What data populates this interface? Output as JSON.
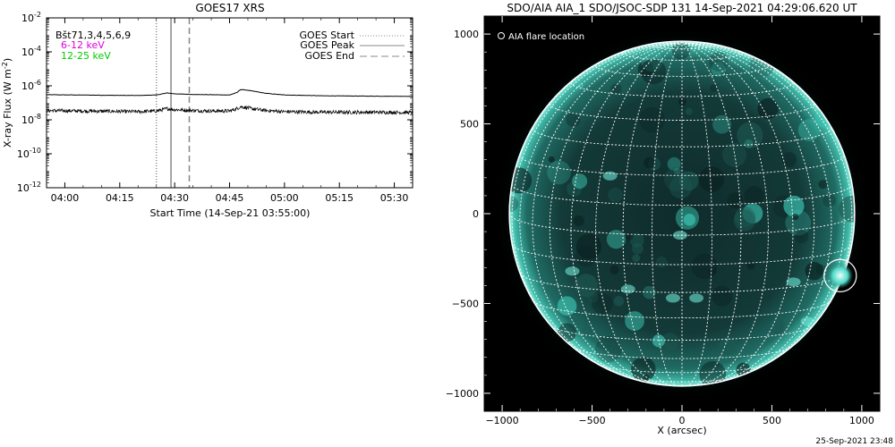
{
  "goes": {
    "title": "GOES17 XRS",
    "ylabel_main": "X-ray Flux (W m",
    "ylabel_exp": "-2",
    "ylabel_close": ")",
    "xlabel": "Start Time (14-Sep-21 03:55:00)",
    "channels": [
      {
        "label": "Bšt71,3,4,5,6,9",
        "color": "#000000"
      },
      {
        "label": "6-12 keV",
        "color": "#e000e0"
      },
      {
        "label": "12-25 keV",
        "color": "#00cc00"
      }
    ],
    "legend": [
      {
        "label": "GOES Start",
        "style": "dotted"
      },
      {
        "label": "GOES Peak",
        "style": "solid"
      },
      {
        "label": "GOES End",
        "style": "dashed"
      }
    ]
  },
  "aia": {
    "title": "SDO/AIA AIA_1 SDO/JSOC-SDP 131 14-Sep-2021 04:29:06.620 UT",
    "legend_label": "AIA flare location",
    "xlabel": "X (arcsec)",
    "accent_color": "#2ad0c0"
  },
  "footer": {
    "timestamp": "25-Sep-2021 23:48"
  },
  "chart_data": [
    {
      "type": "line",
      "title": "GOES17 XRS",
      "xlabel": "Start Time (14-Sep-21 03:55:00)",
      "ylabel": "X-ray Flux (W m^-2)",
      "y_scale": "log",
      "ylim": [
        1e-12,
        0.01
      ],
      "xlim": [
        "03:55",
        "05:35"
      ],
      "x_ticks": [
        "04:00",
        "04:15",
        "04:30",
        "04:45",
        "05:00",
        "05:15",
        "05:30"
      ],
      "y_ticks": [
        {
          "value": 0.01,
          "base": "10",
          "exp": "-2"
        },
        {
          "value": 0.0001,
          "base": "10",
          "exp": "-4"
        },
        {
          "value": 1e-06,
          "base": "10",
          "exp": "-6"
        },
        {
          "value": 1e-08,
          "base": "10",
          "exp": "-8"
        },
        {
          "value": 1e-10,
          "base": "10",
          "exp": "-10"
        },
        {
          "value": 1e-12,
          "base": "10",
          "exp": "-12"
        }
      ],
      "series": [
        {
          "name": "6-12 keV",
          "color": "#000000",
          "x": [
            "03:55",
            "04:10",
            "04:20",
            "04:25",
            "04:28",
            "04:30",
            "04:35",
            "04:40",
            "04:45",
            "04:47",
            "04:48",
            "04:50",
            "04:52",
            "04:55",
            "05:00",
            "05:10",
            "05:20",
            "05:35"
          ],
          "y": [
            3e-07,
            2.8e-07,
            2.7e-07,
            2.9e-07,
            3.8e-07,
            3.4e-07,
            3.1e-07,
            3e-07,
            2.9e-07,
            4e-07,
            6e-07,
            5.5e-07,
            4.6e-07,
            3.6e-07,
            2.9e-07,
            2.6e-07,
            2.5e-07,
            2.4e-07
          ]
        },
        {
          "name": "12-25 keV",
          "color": "#000000",
          "noisy": true,
          "x": [
            "03:55",
            "04:10",
            "04:20",
            "04:25",
            "04:28",
            "04:30",
            "04:35",
            "04:40",
            "04:45",
            "04:47",
            "04:48",
            "04:50",
            "04:52",
            "04:55",
            "05:00",
            "05:10",
            "05:20",
            "05:35"
          ],
          "y": [
            3.5e-08,
            3.2e-08,
            3e-08,
            3.3e-08,
            4.5e-08,
            4e-08,
            3.5e-08,
            3.3e-08,
            3.3e-08,
            4.5e-08,
            6e-08,
            5e-08,
            4.2e-08,
            3.5e-08,
            3e-08,
            2.8e-08,
            2.8e-08,
            2.7e-08
          ]
        }
      ],
      "markers": [
        {
          "name": "GOES Start",
          "x": "04:25",
          "style": "dotted"
        },
        {
          "name": "GOES Peak",
          "x": "04:29",
          "style": "solid"
        },
        {
          "name": "GOES End",
          "x": "04:34",
          "style": "dashed"
        }
      ]
    },
    {
      "type": "heatmap",
      "title": "SDO/AIA AIA_1 SDO/JSOC-SDP 131 14-Sep-2021 04:29:06.620 UT",
      "xlabel": "X (arcsec)",
      "xlim": [
        -1100,
        1100
      ],
      "ylim": [
        -1100,
        1100
      ],
      "x_ticks": [
        -1000,
        -500,
        0,
        500,
        1000
      ],
      "y_ticks": [
        -1000,
        -500,
        0,
        500,
        1000
      ],
      "solar_radius_arcsec": 960,
      "grid_spacing_deg": 10,
      "flare_location": {
        "x": 880,
        "y": -345,
        "radius_arcsec": 90
      }
    }
  ]
}
